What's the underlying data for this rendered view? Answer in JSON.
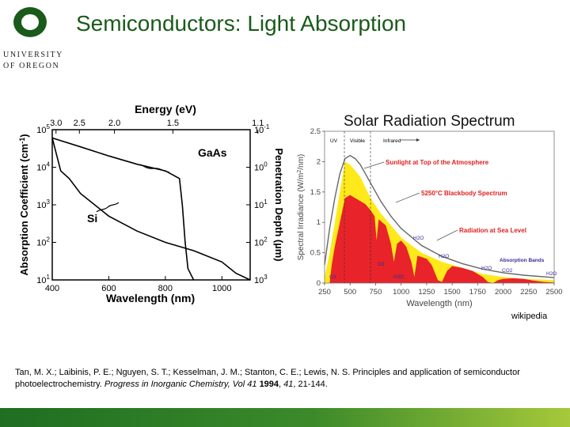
{
  "logo": {
    "line1": "UNIVERSITY",
    "line2": "OF OREGON",
    "brand_color": "#1a5a1a"
  },
  "slide": {
    "title": "Semiconductors: Light Absorption"
  },
  "absorption_chart": {
    "chart_data": {
      "type": "line",
      "xlabel": "Wavelength (nm)",
      "top_xlabel": "Energy (eV)",
      "ylabel": "Absorption Coefficient (cm",
      "ylabel_sup": "-1",
      "right_ylabel": "Penetration Depth (µm)",
      "x_ticks": [
        "400",
        "600",
        "800",
        "1000"
      ],
      "top_ticks": [
        "3.0",
        "2.5",
        "2.0",
        "1.5",
        "1.1"
      ],
      "y_ticks": [
        {
          "base": "10",
          "exp": "5"
        },
        {
          "base": "10",
          "exp": "4"
        },
        {
          "base": "10",
          "exp": "3"
        },
        {
          "base": "10",
          "exp": "2"
        },
        {
          "base": "10",
          "exp": "1"
        }
      ],
      "right_ticks": [
        {
          "base": "10",
          "exp": "-1"
        },
        {
          "base": "10",
          "exp": "0"
        },
        {
          "base": "10",
          "exp": "1"
        },
        {
          "base": "10",
          "exp": "2"
        },
        {
          "base": "10",
          "exp": "3"
        }
      ],
      "xlim": [
        400,
        1100
      ],
      "ylim_log10": [
        1,
        5
      ],
      "series": [
        {
          "name": "GaAs",
          "x": [
            400,
            500,
            600,
            700,
            800,
            850,
            860,
            870,
            880,
            900
          ],
          "y": [
            60000,
            35000,
            20000,
            12000,
            8000,
            5000,
            1000,
            100,
            20,
            10
          ]
        },
        {
          "name": "Si",
          "x": [
            400,
            430,
            460,
            500,
            600,
            700,
            800,
            900,
            1000,
            1050,
            1100
          ],
          "y": [
            60000,
            8000,
            5000,
            2000,
            500,
            200,
            100,
            60,
            30,
            15,
            10
          ]
        }
      ]
    }
  },
  "solar_chart": {
    "chart_data": {
      "type": "area",
      "title": "Solar Radiation Spectrum",
      "xlabel": "Wavelength (nm)",
      "ylabel": "Spectral Irradiance (W/m",
      "ylabel_sup": "2",
      "ylabel_tail": "/nm)",
      "x_ticks": [
        "250",
        "500",
        "750",
        "1000",
        "1250",
        "1500",
        "1750",
        "2000",
        "2250",
        "2500"
      ],
      "y_ticks": [
        "0",
        "0.5",
        "1",
        "1.5",
        "2",
        "2.5"
      ],
      "xlim": [
        250,
        2500
      ],
      "ylim": [
        0,
        2.5
      ],
      "regions": [
        "UV",
        "Visible",
        "Infrared"
      ],
      "labels": {
        "top_atmosphere": "Sunlight at Top of the Atmosphere",
        "blackbody": "5250°C Blackbody Spectrum",
        "sea_level": "Radiation at Sea Level",
        "absorption_bands": "Absorption Bands",
        "o3": "O3",
        "o2": "O2",
        "h2o": "H2O",
        "co2": "CO2"
      },
      "series": [
        {
          "name": "Sunlight at Top of the Atmosphere",
          "x": [
            250,
            300,
            350,
            400,
            450,
            500,
            550,
            600,
            700,
            800,
            900,
            1000,
            1200,
            1400,
            1600,
            1800,
            2000,
            2200,
            2500
          ],
          "y": [
            0.1,
            0.5,
            1.0,
            1.5,
            2.0,
            1.95,
            1.85,
            1.75,
            1.4,
            1.15,
            0.95,
            0.75,
            0.5,
            0.35,
            0.25,
            0.15,
            0.1,
            0.07,
            0.05
          ]
        },
        {
          "name": "5250°C Blackbody Spectrum",
          "x": [
            250,
            300,
            350,
            400,
            450,
            500,
            550,
            600,
            700,
            800,
            900,
            1000,
            1200,
            1400,
            1600,
            1800,
            2000,
            2200,
            2500
          ],
          "y": [
            0.3,
            0.9,
            1.4,
            1.8,
            2.05,
            2.1,
            2.05,
            1.95,
            1.65,
            1.35,
            1.1,
            0.9,
            0.62,
            0.44,
            0.32,
            0.23,
            0.17,
            0.13,
            0.09
          ]
        },
        {
          "name": "Radiation at Sea Level",
          "x": [
            250,
            300,
            320,
            350,
            400,
            450,
            500,
            550,
            600,
            650,
            700,
            740,
            760,
            780,
            850,
            900,
            930,
            960,
            1000,
            1050,
            1100,
            1130,
            1160,
            1250,
            1300,
            1360,
            1400,
            1450,
            1500,
            1600,
            1700,
            1800,
            1850,
            1900,
            1950,
            2000,
            2100,
            2200,
            2300,
            2400,
            2500
          ],
          "y": [
            0,
            0,
            0.3,
            0.6,
            1.0,
            1.4,
            1.45,
            1.4,
            1.35,
            1.3,
            1.2,
            1.1,
            0.7,
            1.05,
            0.95,
            0.65,
            0.35,
            0.65,
            0.7,
            0.6,
            0.35,
            0.1,
            0.45,
            0.4,
            0.3,
            0.05,
            0.02,
            0.2,
            0.28,
            0.25,
            0.2,
            0.1,
            0.02,
            0.0,
            0.05,
            0.07,
            0.08,
            0.07,
            0.04,
            0.02,
            0.01
          ]
        }
      ]
    }
  },
  "credit": "wikipedia",
  "citation": {
    "authors": "Tan, M. X.; Laibinis, P. E.; Nguyen, S. T.; Kesselman, J. M.; Stanton, C. E.; Lewis, N. S. Principles and application of semiconductor photoelectrochemistry. ",
    "journal": "Progress in Inorganic Chemistry, Vol 41",
    "year": "1994",
    "volume": "41",
    "pages": ", 21-144."
  }
}
